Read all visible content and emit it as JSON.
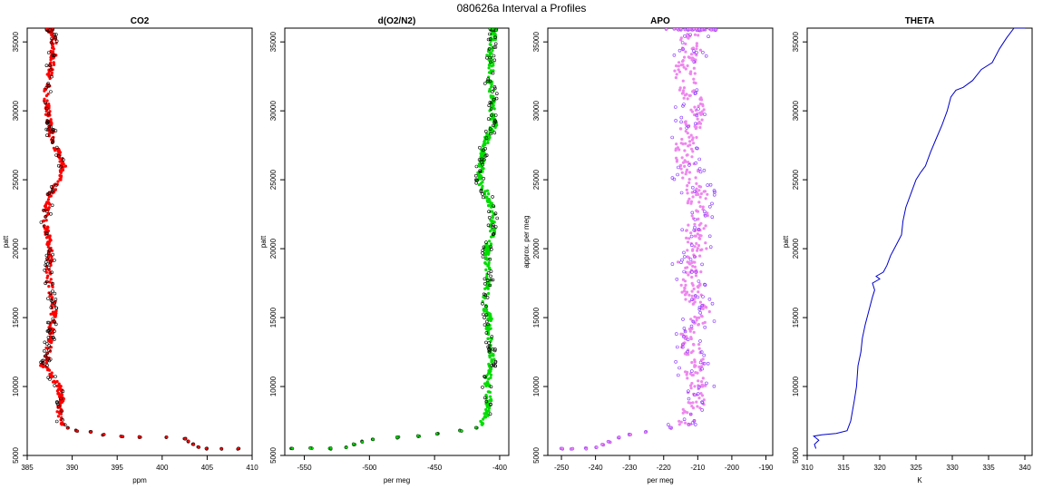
{
  "figure": {
    "title": "080626a   Interval a Profiles"
  },
  "chart_data": [
    {
      "type": "scatter",
      "title": "CO2",
      "xlabel": "ppm",
      "ylabel": "patt",
      "xlim": [
        385,
        410
      ],
      "ylim": [
        5000,
        36000
      ],
      "xticks": [
        385,
        390,
        395,
        400,
        405,
        410
      ],
      "yticks": [
        5000,
        10000,
        15000,
        20000,
        25000,
        30000,
        35000
      ],
      "marker_color": "#ff0000",
      "outline_color": "#000000",
      "main_segments": [
        [
          35900,
          387.5
        ],
        [
          35000,
          388.0
        ],
        [
          34000,
          387.9
        ],
        [
          33000,
          387.6
        ],
        [
          32000,
          387.3
        ],
        [
          31000,
          387.0
        ],
        [
          30000,
          387.3
        ],
        [
          29000,
          387.5
        ],
        [
          28000,
          387.8
        ],
        [
          27000,
          388.4
        ],
        [
          26000,
          389.0
        ],
        [
          25000,
          388.6
        ],
        [
          24000,
          387.6
        ],
        [
          23000,
          387.2
        ],
        [
          22000,
          387.0
        ],
        [
          21000,
          387.3
        ],
        [
          20000,
          387.6
        ],
        [
          19000,
          387.5
        ],
        [
          18000,
          387.3
        ],
        [
          17000,
          387.6
        ],
        [
          16000,
          388.0
        ],
        [
          15000,
          387.9
        ],
        [
          14000,
          387.6
        ],
        [
          13000,
          387.4
        ],
        [
          12000,
          387.2
        ],
        [
          11500,
          386.7
        ],
        [
          11000,
          387.5
        ],
        [
          10000,
          388.5
        ],
        [
          9000,
          388.8
        ],
        [
          8000,
          388.6
        ],
        [
          7200,
          388.9
        ]
      ],
      "tail": [
        [
          7000,
          389.5
        ],
        [
          6800,
          390.5
        ],
        [
          6700,
          392.0
        ],
        [
          6500,
          393.5
        ],
        [
          6400,
          395.5
        ],
        [
          6350,
          397.5
        ],
        [
          6300,
          400.5
        ],
        [
          6200,
          402.5
        ],
        [
          6000,
          403.0
        ],
        [
          5800,
          403.5
        ],
        [
          5600,
          404.0
        ],
        [
          5500,
          405.0
        ],
        [
          5500,
          406.5
        ],
        [
          5500,
          408.5
        ]
      ]
    },
    {
      "type": "scatter",
      "title": "d(O2/N2)",
      "xlabel": "per meg",
      "ylabel": "patt",
      "xlim": [
        -565,
        -393
      ],
      "ylim": [
        5000,
        36000
      ],
      "xticks": [
        -550,
        -500,
        -450,
        -400
      ],
      "yticks": [
        5000,
        10000,
        15000,
        20000,
        25000,
        30000,
        35000
      ],
      "marker_color": "#00dd00",
      "outline_color": "#000000",
      "main_segments": [
        [
          35900,
          -405
        ],
        [
          35000,
          -405
        ],
        [
          34000,
          -408
        ],
        [
          33000,
          -406
        ],
        [
          32000,
          -408
        ],
        [
          31000,
          -405
        ],
        [
          30000,
          -406
        ],
        [
          29000,
          -404
        ],
        [
          28000,
          -410
        ],
        [
          27000,
          -413
        ],
        [
          26000,
          -414
        ],
        [
          25000,
          -416
        ],
        [
          24000,
          -410
        ],
        [
          23000,
          -406
        ],
        [
          22000,
          -405
        ],
        [
          21000,
          -406
        ],
        [
          20000,
          -410
        ],
        [
          19000,
          -410
        ],
        [
          18000,
          -408
        ],
        [
          17000,
          -410
        ],
        [
          16000,
          -412
        ],
        [
          15000,
          -408
        ],
        [
          14000,
          -409
        ],
        [
          13000,
          -407
        ],
        [
          12000,
          -406
        ],
        [
          11000,
          -408
        ],
        [
          10000,
          -410
        ],
        [
          9000,
          -408
        ],
        [
          8000,
          -410
        ],
        [
          7200,
          -414
        ]
      ],
      "tail": [
        [
          7000,
          -418
        ],
        [
          6800,
          -430
        ],
        [
          6600,
          -448
        ],
        [
          6400,
          -462
        ],
        [
          6300,
          -478
        ],
        [
          6200,
          -497
        ],
        [
          6000,
          -505
        ],
        [
          5800,
          -512
        ],
        [
          5600,
          -518
        ],
        [
          5500,
          -530
        ],
        [
          5500,
          -545
        ],
        [
          5500,
          -560
        ]
      ]
    },
    {
      "type": "scatter",
      "title": "APO",
      "xlabel": "per meg",
      "ylabel": "approx. per meg",
      "xlim": [
        -254,
        -188
      ],
      "ylim": [
        5000,
        36000
      ],
      "xticks": [
        -250,
        -240,
        -230,
        -220,
        -210,
        -200,
        -190
      ],
      "yticks": [
        5000,
        10000,
        15000,
        20000,
        25000,
        30000,
        35000
      ],
      "marker_color": "#ee88ee",
      "outline_color": "#8833ff",
      "main_segments": [
        [
          35900,
          -212
        ],
        [
          35000,
          -212
        ],
        [
          34000,
          -212
        ],
        [
          33000,
          -214
        ],
        [
          32000,
          -213
        ],
        [
          31000,
          -212
        ],
        [
          30000,
          -211
        ],
        [
          29000,
          -212
        ],
        [
          28000,
          -213
        ],
        [
          27000,
          -214
        ],
        [
          26000,
          -213
        ],
        [
          25000,
          -212
        ],
        [
          24000,
          -210
        ],
        [
          23000,
          -210
        ],
        [
          22000,
          -210
        ],
        [
          21000,
          -211
        ],
        [
          20000,
          -210
        ],
        [
          19000,
          -213
        ],
        [
          18000,
          -211
        ],
        [
          17000,
          -213
        ],
        [
          16000,
          -210
        ],
        [
          15000,
          -209
        ],
        [
          14000,
          -212
        ],
        [
          13000,
          -212
        ],
        [
          12000,
          -211
        ],
        [
          11000,
          -212
        ],
        [
          10000,
          -210
        ],
        [
          9000,
          -210
        ],
        [
          8000,
          -212
        ],
        [
          7200,
          -214
        ]
      ],
      "tail": [
        [
          7000,
          -218
        ],
        [
          6700,
          -225
        ],
        [
          6500,
          -230
        ],
        [
          6300,
          -233
        ],
        [
          6000,
          -236
        ],
        [
          5800,
          -238
        ],
        [
          5600,
          -240
        ],
        [
          5500,
          -243
        ],
        [
          5500,
          -247
        ],
        [
          5500,
          -250
        ]
      ]
    },
    {
      "type": "line",
      "title": "THETA",
      "xlabel": "K",
      "ylabel": "patt",
      "xlim": [
        310,
        341
      ],
      "ylim": [
        5000,
        36000
      ],
      "xticks": [
        310,
        315,
        320,
        325,
        330,
        335,
        340
      ],
      "yticks": [
        5000,
        10000,
        15000,
        20000,
        25000,
        30000,
        35000
      ],
      "line_color": "#0000cc",
      "points": [
        [
          311.2,
          5500
        ],
        [
          311.0,
          5800
        ],
        [
          311.6,
          6100
        ],
        [
          310.9,
          6400
        ],
        [
          312.0,
          6500
        ],
        [
          314.0,
          6600
        ],
        [
          315.5,
          6800
        ],
        [
          316.0,
          7500
        ],
        [
          316.5,
          9000
        ],
        [
          316.8,
          10000
        ],
        [
          317.0,
          11500
        ],
        [
          317.4,
          12500
        ],
        [
          317.6,
          13500
        ],
        [
          318.0,
          14500
        ],
        [
          318.5,
          15500
        ],
        [
          319.0,
          16500
        ],
        [
          319.3,
          17000
        ],
        [
          319.0,
          17500
        ],
        [
          320.0,
          17800
        ],
        [
          319.5,
          18000
        ],
        [
          320.5,
          18300
        ],
        [
          321.0,
          18800
        ],
        [
          321.5,
          19500
        ],
        [
          322.0,
          20000
        ],
        [
          322.5,
          20500
        ],
        [
          323.0,
          21000
        ],
        [
          323.2,
          22000
        ],
        [
          323.6,
          23000
        ],
        [
          324.3,
          24000
        ],
        [
          325.0,
          25000
        ],
        [
          325.6,
          25500
        ],
        [
          326.3,
          26000
        ],
        [
          327.0,
          27000
        ],
        [
          327.8,
          28000
        ],
        [
          328.6,
          29000
        ],
        [
          329.3,
          30000
        ],
        [
          329.8,
          31000
        ],
        [
          330.5,
          31500
        ],
        [
          331.5,
          31700
        ],
        [
          332.8,
          32200
        ],
        [
          334.0,
          33000
        ],
        [
          335.5,
          33500
        ],
        [
          336.5,
          34500
        ],
        [
          337.5,
          35300
        ],
        [
          338.5,
          36000
        ],
        [
          340.0,
          36000
        ]
      ]
    }
  ]
}
